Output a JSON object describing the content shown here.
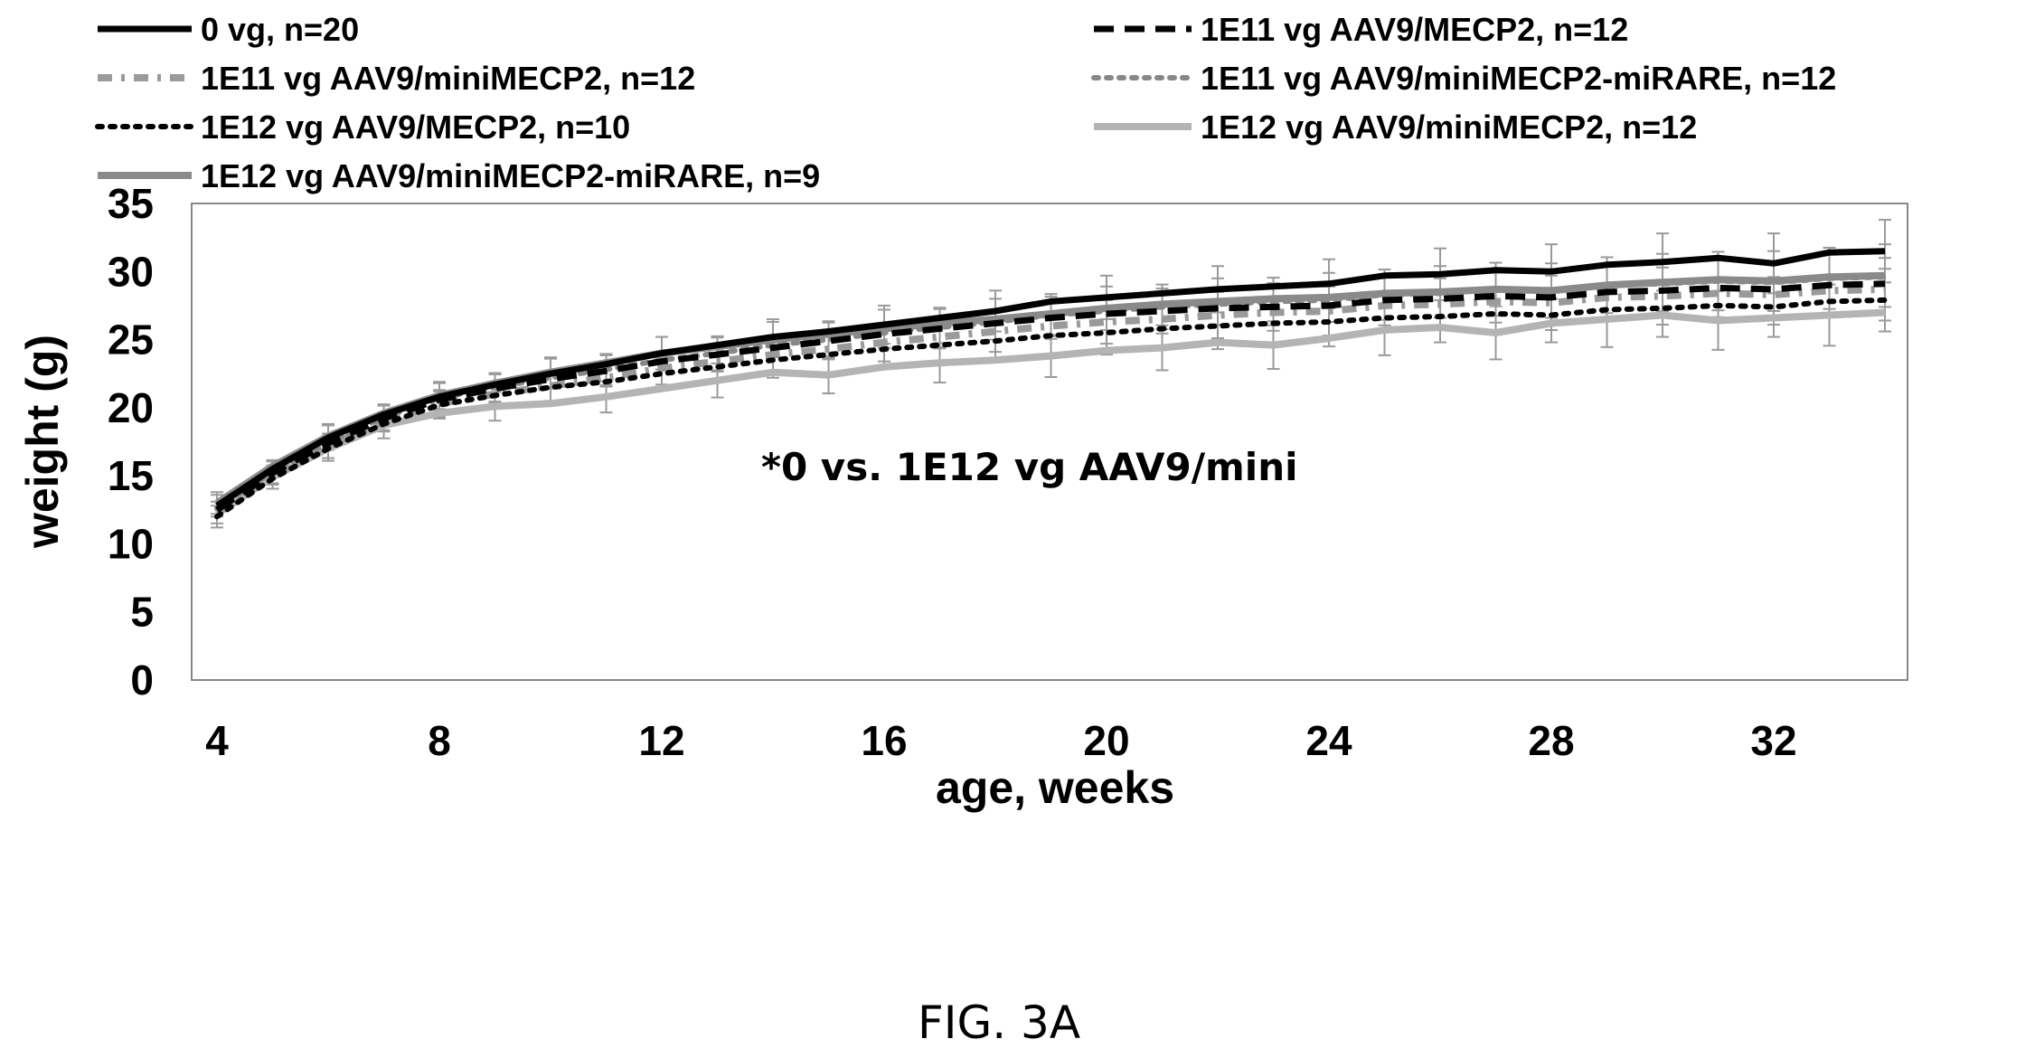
{
  "chart_data": {
    "type": "line",
    "title": "",
    "xlabel": "age, weeks",
    "ylabel": "weight (g)",
    "xlim": [
      4,
      34
    ],
    "ylim": [
      0,
      35
    ],
    "x_ticks": [
      4,
      8,
      12,
      16,
      20,
      24,
      28,
      32
    ],
    "y_ticks": [
      0,
      5,
      10,
      15,
      20,
      25,
      30,
      35
    ],
    "grid": false,
    "error_bars": true,
    "legend_position": "top",
    "annotation": "*0 vs. 1E12 vg AAV9/mini",
    "x": [
      4,
      5,
      6,
      7,
      8,
      9,
      10,
      11,
      12,
      13,
      14,
      15,
      16,
      17,
      18,
      19,
      20,
      21,
      22,
      23,
      24,
      25,
      26,
      27,
      28,
      29,
      30,
      31,
      32,
      33,
      34
    ],
    "series": [
      {
        "name": "0 vg, n=20",
        "color": "#000000",
        "dash": "solid",
        "values": [
          12.8,
          15.5,
          17.8,
          19.5,
          20.8,
          21.7,
          22.5,
          23.2,
          24.0,
          24.6,
          25.2,
          25.6,
          26.1,
          26.6,
          27.1,
          27.8,
          28.1,
          28.4,
          28.7,
          28.9,
          29.1,
          29.7,
          29.8,
          30.1,
          30.0,
          30.5,
          30.7,
          31.0,
          30.6,
          31.4,
          31.5
        ]
      },
      {
        "name": "1E11 vg AAV9/MECP2, n=12",
        "color": "#000000",
        "dash": "dashed",
        "values": [
          12.5,
          15.2,
          17.4,
          19.2,
          20.6,
          21.4,
          22.1,
          22.7,
          23.4,
          23.9,
          24.4,
          24.9,
          25.4,
          25.8,
          26.2,
          26.6,
          26.9,
          27.1,
          27.3,
          27.4,
          27.5,
          27.9,
          28.0,
          28.2,
          28.1,
          28.5,
          28.6,
          28.8,
          28.7,
          29.0,
          29.1
        ]
      },
      {
        "name": "1E11 vg AAV9/miniMECP2, n=12",
        "color": "#9a9a9a",
        "dash": "dashdot",
        "values": [
          12.3,
          15.0,
          17.2,
          19.0,
          20.3,
          21.0,
          21.6,
          22.2,
          22.9,
          23.4,
          23.9,
          24.3,
          24.8,
          25.2,
          25.6,
          26.0,
          26.3,
          26.5,
          26.8,
          27.0,
          27.1,
          27.5,
          27.6,
          27.8,
          27.7,
          28.1,
          28.2,
          28.4,
          28.3,
          28.6,
          28.7
        ]
      },
      {
        "name": "1E11 vg AAV9/miniMECP2-miRARE, n=12",
        "color": "#888888",
        "dash": "dotted",
        "values": [
          12.6,
          15.3,
          17.5,
          19.3,
          20.7,
          21.5,
          22.2,
          22.8,
          23.5,
          24.0,
          24.6,
          25.0,
          25.5,
          25.9,
          26.3,
          26.8,
          27.1,
          27.4,
          27.6,
          27.8,
          27.9,
          28.3,
          28.4,
          28.7,
          28.6,
          29.0,
          29.1,
          29.3,
          29.2,
          29.5,
          29.6
        ]
      },
      {
        "name": "1E12 vg AAV9/MECP2, n=10",
        "color": "#000000",
        "dash": "dotted",
        "values": [
          12.0,
          14.8,
          17.0,
          18.8,
          20.2,
          20.9,
          21.5,
          21.9,
          22.5,
          23.0,
          23.5,
          23.9,
          24.3,
          24.6,
          24.9,
          25.3,
          25.5,
          25.8,
          26.0,
          26.2,
          26.3,
          26.6,
          26.7,
          26.9,
          26.8,
          27.2,
          27.3,
          27.5,
          27.4,
          27.8,
          27.9
        ]
      },
      {
        "name": "1E12 vg AAV9/miniMECP2, n=12",
        "color": "#b4b4b4",
        "dash": "solid",
        "values": [
          12.2,
          14.9,
          17.0,
          18.7,
          19.6,
          20.1,
          20.3,
          20.8,
          21.4,
          22.0,
          22.6,
          22.4,
          23.0,
          23.3,
          23.5,
          23.8,
          24.2,
          24.4,
          24.8,
          24.6,
          25.1,
          25.7,
          25.9,
          25.5,
          26.2,
          26.5,
          26.8,
          26.4,
          26.6,
          26.8,
          27.0
        ]
      },
      {
        "name": "1E12 vg AAV9/miniMECP2-miRARE, n=9",
        "color": "#8a8a8a",
        "dash": "solid",
        "values": [
          13.0,
          15.7,
          17.9,
          19.6,
          20.9,
          21.8,
          22.6,
          23.3,
          24.0,
          24.5,
          25.0,
          25.4,
          25.8,
          26.2,
          26.5,
          26.9,
          27.3,
          27.6,
          27.8,
          28.0,
          28.1,
          28.4,
          28.5,
          28.7,
          28.6,
          29.0,
          29.2,
          29.4,
          29.3,
          29.6,
          29.7
        ]
      }
    ]
  },
  "caption": "FIG. 3A"
}
